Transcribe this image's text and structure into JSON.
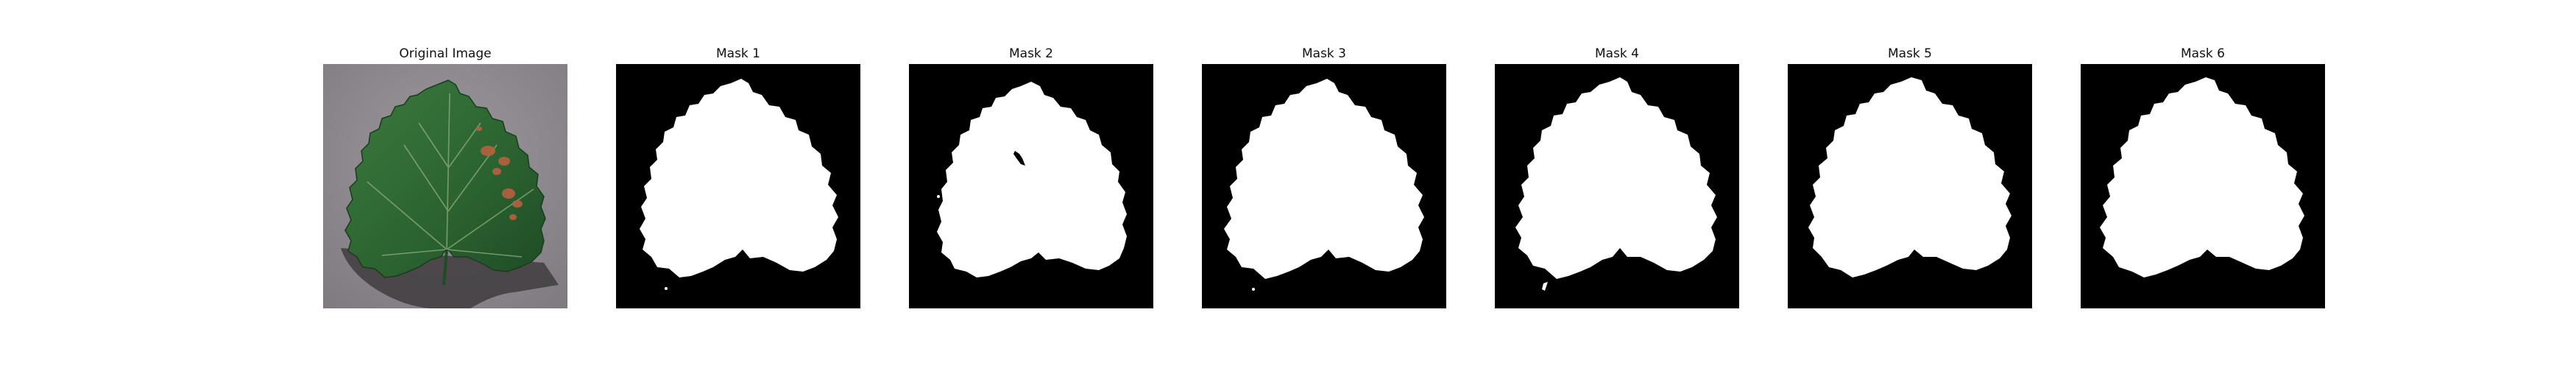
{
  "figure": {
    "panels": [
      {
        "id": "original",
        "title": "Original Image",
        "kind": "photo"
      },
      {
        "id": "mask1",
        "title": "Mask 1",
        "kind": "mask"
      },
      {
        "id": "mask2",
        "title": "Mask 2",
        "kind": "mask"
      },
      {
        "id": "mask3",
        "title": "Mask 3",
        "kind": "mask"
      },
      {
        "id": "mask4",
        "title": "Mask 4",
        "kind": "mask"
      },
      {
        "id": "mask5",
        "title": "Mask 5",
        "kind": "mask"
      },
      {
        "id": "mask6",
        "title": "Mask 6",
        "kind": "mask"
      }
    ]
  },
  "colors": {
    "page_background": "#ffffff",
    "mask_background": "#000000",
    "mask_foreground": "#ffffff",
    "photo_background": "#8f8b8f",
    "leaf_green": "#2e6a34",
    "leaf_dark": "#1d4a25",
    "rust_spot": "#b5613f",
    "shadow": "#3f3c40"
  }
}
